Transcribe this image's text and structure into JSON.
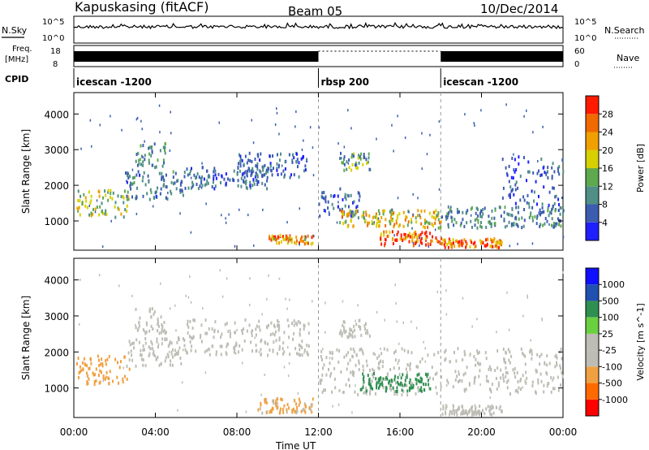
{
  "header": {
    "station": "Kapuskasing (fitACF)",
    "beam": "Beam 05",
    "date": "10/Dec/2014"
  },
  "summary_panels": {
    "nsky_label": "N.Sky",
    "nsearch_label": "N.Search",
    "noise_ticks": [
      "10^5",
      "10^0"
    ],
    "freq_label": "Freq.",
    "freq_unit": "[MHz]",
    "freq_ticks": [
      "18",
      "8"
    ],
    "nave_label": "Nave",
    "nave_ticks": [
      "60",
      "0"
    ],
    "cpid_label": "CPID",
    "cpid_segments": [
      {
        "label": "icescan -1200",
        "start_hour": 0,
        "end_hour": 12
      },
      {
        "label": "rbsp 200",
        "start_hour": 12,
        "end_hour": 18
      },
      {
        "label": "icescan -1200",
        "start_hour": 18,
        "end_hour": 24
      }
    ]
  },
  "x_axis": {
    "label": "Time UT",
    "tick_hours": [
      0,
      4,
      8,
      12,
      16,
      20,
      24
    ],
    "tick_labels": [
      "00:00",
      "04:00",
      "08:00",
      "12:00",
      "16:00",
      "20:00",
      "00:00"
    ]
  },
  "colors": {
    "power_scale": [
      "#1f1fff",
      "#3c5cb0",
      "#4f8f86",
      "#5ea84e",
      "#d7d000",
      "#f0a000",
      "#f06a00",
      "#ff1a00"
    ],
    "velocity_scale": [
      "#ff0000",
      "#ff6a00",
      "#f0a040",
      "#bdbdb5",
      "#bdbdb5",
      "#6ad040",
      "#2f8f50",
      "#2050b0",
      "#1010ff"
    ]
  },
  "chart_data": [
    {
      "type": "heatmap",
      "title": "",
      "xlabel": "",
      "ylabel": "Slant Range [km]",
      "xlim": [
        0,
        24
      ],
      "ylim": [
        180,
        4600
      ],
      "y_ticks": [
        1000,
        2000,
        3000,
        4000
      ],
      "colorbar": {
        "label": "Power [dB]",
        "ticks": [
          "4",
          "8",
          "12",
          "16",
          "20",
          "24",
          "28"
        ],
        "range": [
          0,
          30
        ]
      },
      "regions": [
        {
          "t0": 0.1,
          "t1": 2.7,
          "r0": 1100,
          "r1": 1900,
          "value": 16
        },
        {
          "t0": 2.5,
          "t1": 5.5,
          "r0": 1600,
          "r1": 2400,
          "value": 8
        },
        {
          "t0": 3.0,
          "t1": 4.5,
          "r0": 2500,
          "r1": 3200,
          "value": 10
        },
        {
          "t0": 5.5,
          "t1": 9.5,
          "r0": 1900,
          "r1": 2500,
          "value": 7
        },
        {
          "t0": 8.0,
          "t1": 11.5,
          "r0": 2200,
          "r1": 2900,
          "value": 6
        },
        {
          "t0": 9.5,
          "t1": 11.7,
          "r0": 350,
          "r1": 600,
          "value": 24
        },
        {
          "t0": 12.0,
          "t1": 14.0,
          "r0": 1100,
          "r1": 1900,
          "value": 6
        },
        {
          "t0": 13.0,
          "t1": 14.5,
          "r0": 2400,
          "r1": 2900,
          "value": 12
        },
        {
          "t0": 13.0,
          "t1": 18.0,
          "r0": 800,
          "r1": 1300,
          "value": 18
        },
        {
          "t0": 15.0,
          "t1": 18.0,
          "r0": 300,
          "r1": 700,
          "value": 28
        },
        {
          "t0": 18.0,
          "t1": 21.0,
          "r0": 250,
          "r1": 500,
          "value": 26
        },
        {
          "t0": 18.0,
          "t1": 24.0,
          "r0": 800,
          "r1": 1400,
          "value": 9
        },
        {
          "t0": 21.0,
          "t1": 24.0,
          "r0": 1400,
          "r1": 2800,
          "value": 6
        }
      ]
    },
    {
      "type": "heatmap",
      "title": "",
      "xlabel": "Time UT",
      "ylabel": "Slant Range [km]",
      "xlim": [
        0,
        24
      ],
      "ylim": [
        180,
        4600
      ],
      "y_ticks": [
        1000,
        2000,
        3000,
        4000
      ],
      "colorbar": {
        "label": "Velocity [m s^-1]",
        "ticks": [
          "-1000",
          "-500",
          "-100",
          "-25",
          "25",
          "100",
          "500",
          "1000"
        ],
        "range": [
          -1200,
          1200
        ]
      },
      "regions": [
        {
          "t0": 0.1,
          "t1": 2.7,
          "r0": 1100,
          "r1": 1900,
          "value": -150
        },
        {
          "t0": 2.5,
          "t1": 5.5,
          "r0": 1600,
          "r1": 2400,
          "value": 0
        },
        {
          "t0": 3.0,
          "t1": 4.5,
          "r0": 2500,
          "r1": 3200,
          "value": 0
        },
        {
          "t0": 5.5,
          "t1": 11.5,
          "r0": 1900,
          "r1": 2900,
          "value": 0
        },
        {
          "t0": 9.0,
          "t1": 11.7,
          "r0": 300,
          "r1": 700,
          "value": -120
        },
        {
          "t0": 12.0,
          "t1": 24.0,
          "r0": 800,
          "r1": 2100,
          "value": 0
        },
        {
          "t0": 13.0,
          "t1": 14.5,
          "r0": 2400,
          "r1": 2900,
          "value": -60
        },
        {
          "t0": 14.0,
          "t1": 17.5,
          "r0": 900,
          "r1": 1400,
          "value": 150
        },
        {
          "t0": 18.0,
          "t1": 21.0,
          "r0": 250,
          "r1": 500,
          "value": 0
        }
      ]
    }
  ]
}
